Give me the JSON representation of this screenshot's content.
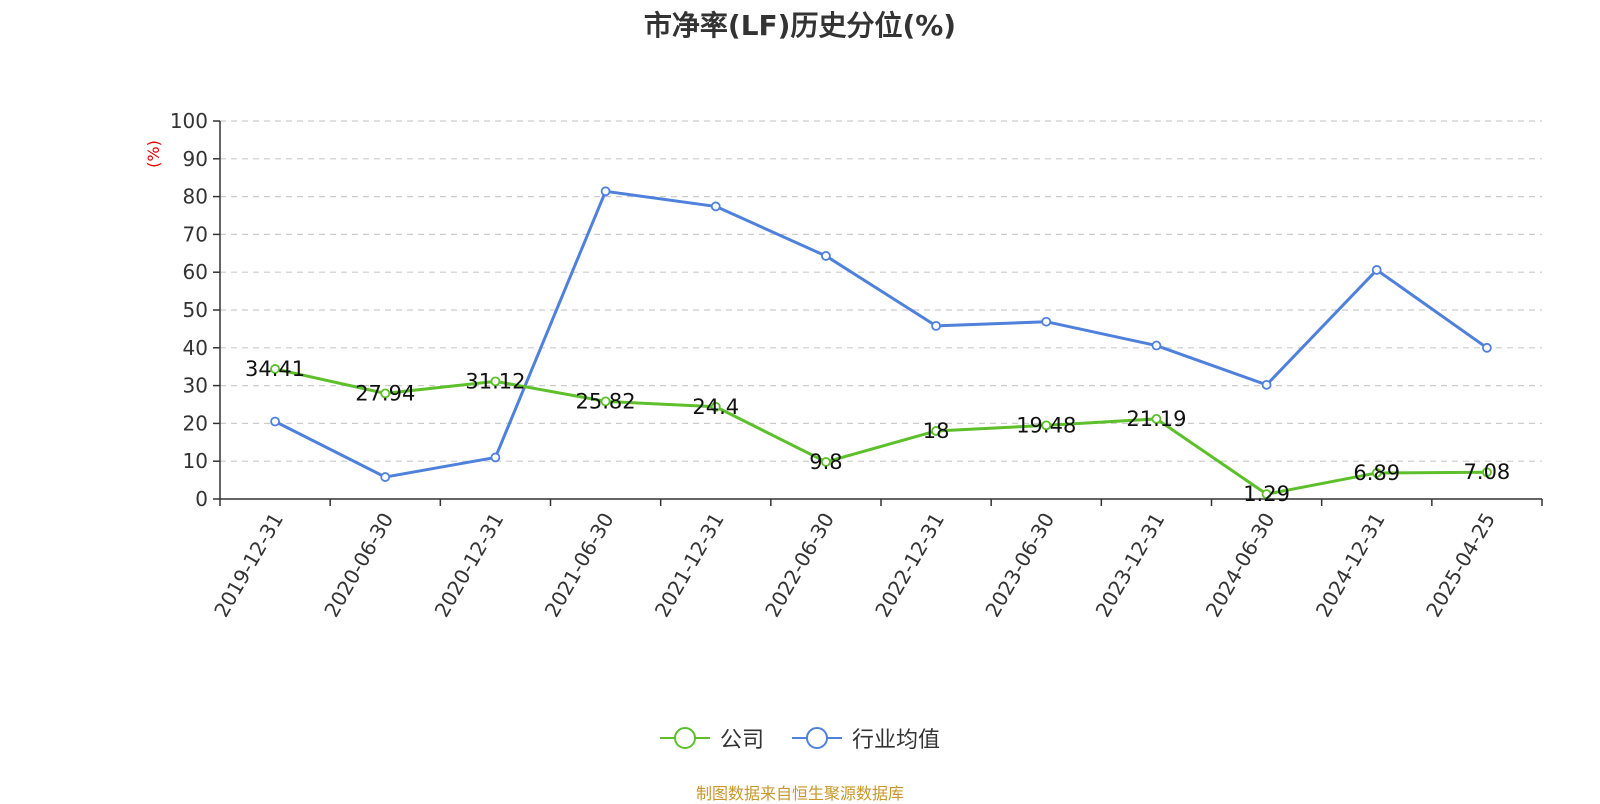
{
  "chart_data": {
    "type": "line",
    "title": "市净率(LF)历史分位(%)",
    "ylabel": "(%)",
    "xlabel": "",
    "ylim": [
      0,
      100
    ],
    "yticks": [
      0,
      10,
      20,
      30,
      40,
      50,
      60,
      70,
      80,
      90,
      100
    ],
    "grid": true,
    "legend_position": "bottom",
    "categories": [
      "2019-12-31",
      "2020-06-30",
      "2020-12-31",
      "2021-06-30",
      "2021-12-31",
      "2022-06-30",
      "2022-12-31",
      "2023-06-30",
      "2023-12-31",
      "2024-06-30",
      "2024-12-31",
      "2025-04-25"
    ],
    "series": [
      {
        "name": "公司",
        "color": "#5dc02b",
        "values": [
          34.41,
          27.94,
          31.12,
          25.82,
          24.4,
          9.8,
          18,
          19.48,
          21.19,
          1.29,
          6.89,
          7.08
        ],
        "labels": [
          "34.41",
          "27.94",
          "31.12",
          "25.82",
          "24.4",
          "9.8",
          "18",
          "19.48",
          "21.19",
          "1.29",
          "6.89",
          "7.08"
        ]
      },
      {
        "name": "行业均值",
        "color": "#4f81dc",
        "values": [
          20.5,
          5.8,
          11.0,
          81.4,
          77.4,
          64.3,
          45.8,
          46.9,
          40.6,
          30.2,
          60.6,
          40.0
        ]
      }
    ]
  },
  "source_text": "制图数据来自恒生聚源数据库"
}
